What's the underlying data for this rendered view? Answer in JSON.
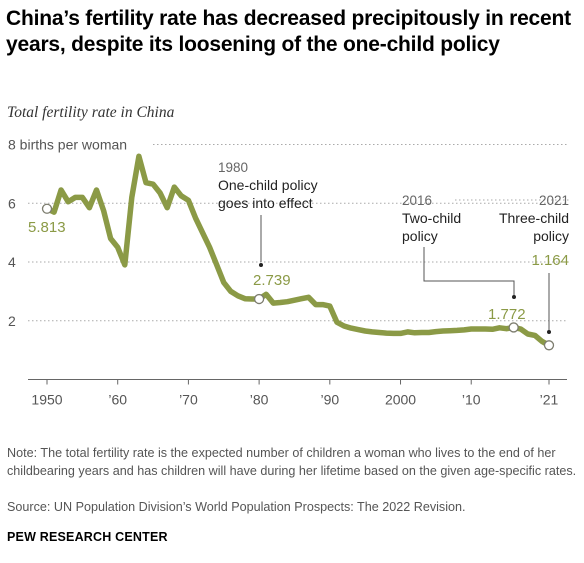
{
  "title": "China’s fertility rate has decreased precipitously in recent years, despite its loosening of the one-child policy",
  "subtitle": "Total fertility rate in China",
  "note": "Note: The total fertility rate is the expected number of children a woman who lives to the end of her childbearing years and has children will have during her lifetime based on the given age-specific rates.",
  "source": "Source: UN Population Division’s World Population Prospects: The 2022 Revision.",
  "brand": "PEW RESEARCH CENTER",
  "colors": {
    "line": "#8b9a46",
    "label": "#8b9a46",
    "axis": "#666666",
    "grid": "#aaaaaa",
    "text": "#555555"
  },
  "chart_data": {
    "type": "line",
    "title": "Total fertility rate in China",
    "ylabel": "8 births per woman",
    "xlim": [
      1950,
      2021
    ],
    "ylim": [
      0,
      8
    ],
    "y_ticks": [
      {
        "value": 2,
        "label": "2"
      },
      {
        "value": 4,
        "label": "4"
      },
      {
        "value": 6,
        "label": "6"
      },
      {
        "value": 8,
        "label": "8 births per woman"
      }
    ],
    "x_ticks": [
      {
        "value": 1950,
        "label": "1950"
      },
      {
        "value": 1960,
        "label": "’60"
      },
      {
        "value": 1970,
        "label": "’70"
      },
      {
        "value": 1980,
        "label": "’80"
      },
      {
        "value": 1990,
        "label": "’90"
      },
      {
        "value": 2000,
        "label": "2000"
      },
      {
        "value": 2010,
        "label": "’10"
      },
      {
        "value": 2021,
        "label": "’21"
      }
    ],
    "grid": "horizontal dotted",
    "x": [
      1950,
      1951,
      1952,
      1953,
      1954,
      1955,
      1956,
      1957,
      1958,
      1959,
      1960,
      1961,
      1962,
      1963,
      1964,
      1965,
      1966,
      1967,
      1968,
      1969,
      1970,
      1971,
      1972,
      1973,
      1974,
      1975,
      1976,
      1977,
      1978,
      1979,
      1980,
      1981,
      1982,
      1983,
      1984,
      1985,
      1986,
      1987,
      1988,
      1989,
      1990,
      1991,
      1992,
      1993,
      1994,
      1995,
      1996,
      1997,
      1998,
      1999,
      2000,
      2001,
      2002,
      2003,
      2004,
      2005,
      2006,
      2007,
      2008,
      2009,
      2010,
      2011,
      2012,
      2013,
      2014,
      2015,
      2016,
      2017,
      2018,
      2019,
      2020,
      2021
    ],
    "values": [
      5.813,
      5.7,
      6.45,
      6.05,
      6.2,
      6.2,
      5.85,
      6.45,
      5.75,
      4.8,
      4.5,
      3.9,
      6.2,
      7.6,
      6.7,
      6.65,
      6.35,
      5.85,
      6.55,
      6.25,
      6.1,
      5.5,
      5.0,
      4.5,
      3.9,
      3.3,
      3.0,
      2.85,
      2.75,
      2.74,
      2.739,
      2.9,
      2.6,
      2.62,
      2.65,
      2.7,
      2.75,
      2.8,
      2.55,
      2.55,
      2.5,
      1.95,
      1.82,
      1.75,
      1.7,
      1.65,
      1.62,
      1.6,
      1.58,
      1.57,
      1.57,
      1.62,
      1.59,
      1.6,
      1.6,
      1.63,
      1.65,
      1.66,
      1.67,
      1.69,
      1.72,
      1.72,
      1.72,
      1.71,
      1.76,
      1.73,
      1.772,
      1.72,
      1.55,
      1.5,
      1.3,
      1.164
    ],
    "highlights": [
      {
        "year": 1950,
        "value": 5.813,
        "label": "5.813"
      },
      {
        "year": 1980,
        "value": 2.739,
        "label": "2.739"
      },
      {
        "year": 2016,
        "value": 1.772,
        "label": "1.772"
      },
      {
        "year": 2021,
        "value": 1.164,
        "label": "1.164"
      }
    ],
    "annotations": [
      {
        "year_label": "1980",
        "text_lines": [
          "One-child policy",
          "goes into effect"
        ]
      },
      {
        "year_label": "2016",
        "text_lines": [
          "Two-child",
          "policy"
        ]
      },
      {
        "year_label": "2021",
        "text_lines": [
          "Three-child",
          "policy"
        ]
      }
    ]
  }
}
